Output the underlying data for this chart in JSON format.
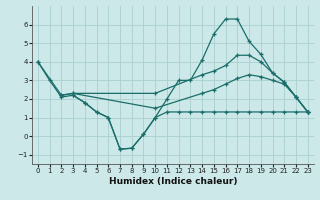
{
  "bg_color": "#cce8e8",
  "line_color": "#1a6e6a",
  "grid_color": "#aad0d0",
  "xlabel": "Humidex (Indice chaleur)",
  "xlim": [
    -0.5,
    23.5
  ],
  "ylim": [
    -1.5,
    7.0
  ],
  "yticks": [
    -1,
    0,
    1,
    2,
    3,
    4,
    5,
    6
  ],
  "xticks": [
    0,
    1,
    2,
    3,
    4,
    5,
    6,
    7,
    8,
    9,
    10,
    11,
    12,
    13,
    14,
    15,
    16,
    17,
    18,
    19,
    20,
    21,
    22,
    23
  ],
  "series": [
    {
      "x": [
        0,
        1,
        2,
        3,
        4,
        5,
        6,
        7,
        8,
        9,
        10,
        11,
        12,
        13,
        14,
        15,
        16,
        17,
        18,
        19,
        20,
        21,
        22,
        23
      ],
      "y": [
        4.0,
        3.0,
        2.1,
        2.2,
        1.8,
        1.3,
        1.0,
        -0.7,
        -0.65,
        0.1,
        1.0,
        2.0,
        3.0,
        3.0,
        4.1,
        5.5,
        6.3,
        6.3,
        5.1,
        4.4,
        3.4,
        2.9,
        2.1,
        1.3
      ]
    },
    {
      "x": [
        0,
        2,
        3,
        10,
        14,
        15,
        16,
        17,
        18,
        19,
        20,
        21,
        22,
        23
      ],
      "y": [
        4.0,
        2.2,
        2.3,
        2.3,
        3.3,
        3.5,
        3.8,
        4.35,
        4.35,
        4.0,
        3.4,
        2.9,
        2.1,
        1.3
      ]
    },
    {
      "x": [
        2,
        3,
        10,
        14,
        15,
        16,
        17,
        18,
        19,
        20,
        21,
        22,
        23
      ],
      "y": [
        2.2,
        2.3,
        1.5,
        2.3,
        2.5,
        2.8,
        3.1,
        3.3,
        3.2,
        3.0,
        2.8,
        2.1,
        1.3
      ]
    },
    {
      "x": [
        3,
        4,
        5,
        6,
        7,
        8,
        9,
        10,
        11,
        12,
        13,
        14,
        15,
        16,
        17,
        18,
        19,
        20,
        21,
        22,
        23
      ],
      "y": [
        2.2,
        1.8,
        1.3,
        1.0,
        -0.7,
        -0.65,
        0.1,
        1.0,
        1.3,
        1.3,
        1.3,
        1.3,
        1.3,
        1.3,
        1.3,
        1.3,
        1.3,
        1.3,
        1.3,
        1.3,
        1.3
      ]
    }
  ]
}
